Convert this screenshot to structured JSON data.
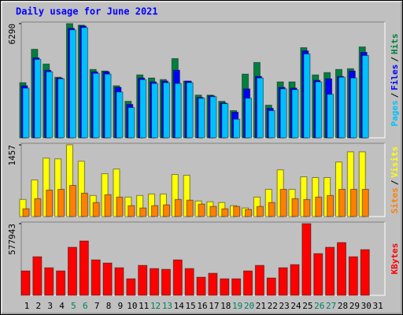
{
  "title": "Daily usage for June 2021",
  "legend_separator": "/",
  "chart_data": [
    {
      "type": "bar",
      "ylim": [
        0,
        6290
      ],
      "yticks": [
        6290
      ],
      "series": [
        {
          "name": "Hits",
          "color": "#008040",
          "values": [
            3038,
            4878,
            4065,
            3337,
            6290,
            6205,
            3765,
            3680,
            2867,
            2011,
            3466,
            3295,
            3209,
            4364,
            3124,
            2353,
            2353,
            2011,
            1498,
            3509,
            4150,
            1797,
            3081,
            3081,
            4964,
            3466,
            3594,
            3765,
            3808,
            5006,
            0
          ]
        },
        {
          "name": "Files",
          "color": "#0000ff",
          "values": [
            2867,
            4407,
            3723,
            3295,
            6033,
            6162,
            3637,
            3637,
            2781,
            1840,
            3295,
            3081,
            3124,
            3723,
            3124,
            2225,
            2311,
            1926,
            1412,
            2696,
            3380,
            1626,
            2781,
            2739,
            4792,
            3166,
            3252,
            3380,
            3680,
            4707,
            0
          ]
        },
        {
          "name": "Pages",
          "color": "#00c0ff",
          "values": [
            2739,
            4322,
            3637,
            3252,
            5948,
            6076,
            3552,
            3509,
            2525,
            1669,
            3209,
            2995,
            3038,
            2995,
            3038,
            2182,
            2268,
            1883,
            1027,
            2182,
            3295,
            1498,
            2696,
            2653,
            4621,
            3081,
            2396,
            3338,
            3295,
            4536,
            0
          ]
        }
      ]
    },
    {
      "type": "bar",
      "ylim": [
        0,
        1457
      ],
      "yticks": [
        1457
      ],
      "series": [
        {
          "name": "Visits",
          "color": "#ffff00",
          "values": [
            348,
            744,
            1188,
            1172,
            1457,
            1125,
            428,
            871,
            966,
            396,
            428,
            459,
            459,
            855,
            840,
            317,
            301,
            285,
            222,
            174,
            396,
            554,
            950,
            554,
            808,
            792,
            792,
            1109,
            1315,
            1315,
            0
          ]
        },
        {
          "name": "Sites",
          "color": "#ff8000",
          "values": [
            158,
            364,
            539,
            554,
            634,
            475,
            285,
            444,
            396,
            222,
            174,
            222,
            238,
            348,
            333,
            253,
            206,
            158,
            206,
            143,
            206,
            285,
            554,
            364,
            348,
            396,
            428,
            554,
            554,
            554,
            0
          ]
        }
      ]
    },
    {
      "type": "bar",
      "ylim": [
        0,
        577943
      ],
      "yticks": [
        577943
      ],
      "categories": [
        "1",
        "2",
        "3",
        "4",
        "5",
        "6",
        "7",
        "8",
        "9",
        "10",
        "11",
        "12",
        "13",
        "14",
        "15",
        "16",
        "17",
        "18",
        "19",
        "20",
        "21",
        "22",
        "23",
        "24",
        "25",
        "26",
        "27",
        "28",
        "29",
        "30",
        "31"
      ],
      "category_colors": [
        "#000000",
        "#000000",
        "#000000",
        "#000000",
        "#008060",
        "#008060",
        "#000000",
        "#000000",
        "#000000",
        "#000000",
        "#000000",
        "#008060",
        "#008060",
        "#000000",
        "#000000",
        "#000000",
        "#000000",
        "#000000",
        "#008060",
        "#008060",
        "#000000",
        "#000000",
        "#000000",
        "#000000",
        "#000000",
        "#008060",
        "#008060",
        "#000000",
        "#000000",
        "#000000",
        "#000000"
      ],
      "series": [
        {
          "name": "KBytes",
          "color": "#ff0000",
          "values": [
            196881,
            311199,
            222285,
            196881,
            387411,
            438219,
            285795,
            260391,
            222285,
            133371,
            241338,
            215934,
            209583,
            285795,
            215934,
            146073,
            177828,
            133371,
            133371,
            196881,
            241338,
            139722,
            222285,
            247689,
            577943,
            336603,
            387411,
            425517,
            311199,
            368358,
            0
          ]
        }
      ]
    }
  ]
}
